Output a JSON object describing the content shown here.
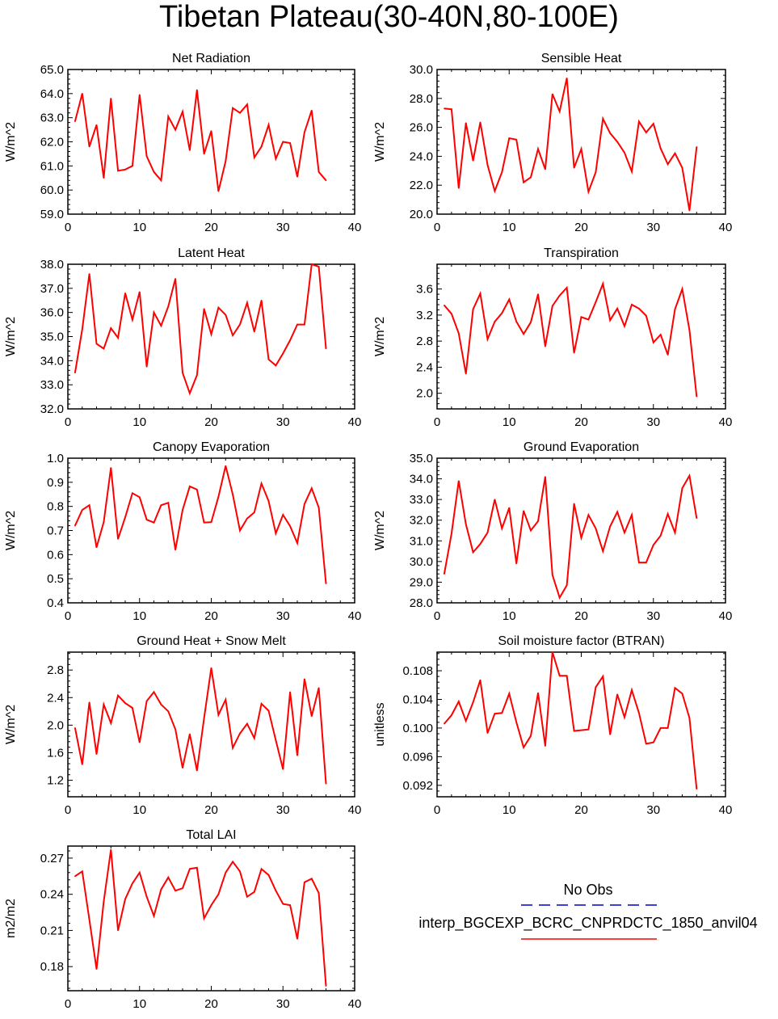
{
  "title": "Tibetan Plateau(30-40N,80-100E)",
  "colors": {
    "model_line": "#ff0000",
    "obs_line": "#0000cc",
    "axis": "#000000"
  },
  "legend": {
    "obs_label": "No Obs",
    "model_label": "interp_BGCEXP_BCRC_CNPRDCTC_1850_anvil04",
    "obs_style": "dashed",
    "model_style": "solid"
  },
  "chart_data": [
    {
      "type": "line",
      "title": "Net Radiation",
      "ylabel": "W/m^2",
      "xlabel": "",
      "xlim": [
        0,
        40
      ],
      "ylim": [
        59,
        65
      ],
      "xticks": [
        0,
        10,
        20,
        30,
        40
      ],
      "xtick_labels": [
        "0",
        "10",
        "20",
        "30",
        "40"
      ],
      "yticks": [
        59,
        60,
        61,
        62,
        63,
        64,
        65
      ],
      "ytick_labels": [
        "59.0",
        "60.0",
        "61.0",
        "62.0",
        "63.0",
        "64.0",
        "65.0"
      ],
      "x": [
        1,
        2,
        3,
        4,
        5,
        6,
        7,
        8,
        9,
        10,
        11,
        12,
        13,
        14,
        15,
        16,
        17,
        18,
        19,
        20,
        21,
        22,
        23,
        24,
        25,
        26,
        27,
        28,
        29,
        30,
        31,
        32,
        33,
        34,
        35,
        36
      ],
      "series": [
        {
          "name": "interp_BGCEXP_BCRC_CNPRDCTC_1850_anvil04",
          "values": [
            62.85,
            64.0,
            61.8,
            62.7,
            60.5,
            63.8,
            60.8,
            60.85,
            61.0,
            63.95,
            61.4,
            60.75,
            60.4,
            63.05,
            62.5,
            63.25,
            61.65,
            64.15,
            61.5,
            62.45,
            59.95,
            61.2,
            63.4,
            63.2,
            63.55,
            61.35,
            61.8,
            62.7,
            61.3,
            62.0,
            61.95,
            60.55,
            62.4,
            63.3,
            60.75,
            60.4
          ]
        }
      ]
    },
    {
      "type": "line",
      "title": "Sensible Heat",
      "ylabel": "W/m^2",
      "xlabel": "",
      "xlim": [
        0,
        40
      ],
      "ylim": [
        20,
        30
      ],
      "xticks": [
        0,
        10,
        20,
        30,
        40
      ],
      "xtick_labels": [
        "0",
        "10",
        "20",
        "30",
        "40"
      ],
      "yticks": [
        20,
        22,
        24,
        26,
        28,
        30
      ],
      "ytick_labels": [
        "20.0",
        "22.0",
        "24.0",
        "26.0",
        "28.0",
        "30.0"
      ],
      "x": [
        1,
        2,
        3,
        4,
        5,
        6,
        7,
        8,
        9,
        10,
        11,
        12,
        13,
        14,
        15,
        16,
        17,
        18,
        19,
        20,
        21,
        22,
        23,
        24,
        25,
        26,
        27,
        28,
        29,
        30,
        31,
        32,
        33,
        34,
        35,
        36
      ],
      "series": [
        {
          "name": "interp_BGCEXP_BCRC_CNPRDCTC_1850_anvil04",
          "values": [
            27.3,
            27.25,
            21.8,
            26.3,
            23.7,
            26.35,
            23.4,
            21.6,
            22.9,
            25.25,
            25.15,
            22.2,
            22.55,
            24.5,
            23.1,
            28.3,
            27.1,
            29.4,
            23.2,
            24.5,
            21.55,
            22.9,
            26.6,
            25.6,
            25.0,
            24.25,
            22.95,
            26.4,
            25.65,
            26.25,
            24.55,
            23.45,
            24.2,
            23.2,
            20.25,
            24.65
          ]
        }
      ]
    },
    {
      "type": "line",
      "title": "Latent Heat",
      "ylabel": "W/m^2",
      "xlabel": "",
      "xlim": [
        0,
        40
      ],
      "ylim": [
        32,
        38
      ],
      "xticks": [
        0,
        10,
        20,
        30,
        40
      ],
      "xtick_labels": [
        "0",
        "10",
        "20",
        "30",
        "40"
      ],
      "yticks": [
        32,
        33,
        34,
        35,
        36,
        37,
        38
      ],
      "ytick_labels": [
        "32.0",
        "33.0",
        "34.0",
        "35.0",
        "36.0",
        "37.0",
        "38.0"
      ],
      "x": [
        1,
        2,
        3,
        4,
        5,
        6,
        7,
        8,
        9,
        10,
        11,
        12,
        13,
        14,
        15,
        16,
        17,
        18,
        19,
        20,
        21,
        22,
        23,
        24,
        25,
        26,
        27,
        28,
        29,
        30,
        31,
        32,
        33,
        34,
        35,
        36
      ],
      "series": [
        {
          "name": "interp_BGCEXP_BCRC_CNPRDCTC_1850_anvil04",
          "values": [
            33.5,
            35.3,
            37.6,
            34.7,
            34.5,
            35.35,
            34.95,
            36.8,
            35.7,
            36.85,
            33.75,
            36.0,
            35.45,
            36.25,
            37.4,
            33.5,
            32.65,
            33.4,
            36.15,
            35.1,
            36.2,
            35.9,
            35.05,
            35.5,
            36.4,
            35.2,
            36.5,
            34.05,
            33.8,
            34.3,
            34.85,
            35.5,
            35.5,
            38.0,
            37.9,
            34.5
          ]
        }
      ]
    },
    {
      "type": "line",
      "title": "Transpiration",
      "ylabel": "W/m^2",
      "xlabel": "",
      "xlim": [
        0,
        40
      ],
      "ylim": [
        1.76,
        3.98
      ],
      "xticks": [
        0,
        10,
        20,
        30,
        40
      ],
      "xtick_labels": [
        "0",
        "10",
        "20",
        "30",
        "40"
      ],
      "yticks": [
        2.0,
        2.4,
        2.8,
        3.2,
        3.6
      ],
      "ytick_labels": [
        "2.0",
        "2.4",
        "2.8",
        "3.2",
        "3.6"
      ],
      "x": [
        1,
        2,
        3,
        4,
        5,
        6,
        7,
        8,
        9,
        10,
        11,
        12,
        13,
        14,
        15,
        16,
        17,
        18,
        19,
        20,
        21,
        22,
        23,
        24,
        25,
        26,
        27,
        28,
        29,
        30,
        31,
        32,
        33,
        34,
        35,
        36
      ],
      "series": [
        {
          "name": "interp_BGCEXP_BCRC_CNPRDCTC_1850_anvil04",
          "values": [
            3.35,
            3.22,
            2.92,
            2.3,
            3.29,
            3.53,
            2.83,
            3.1,
            3.23,
            3.44,
            3.1,
            2.91,
            3.09,
            3.52,
            2.72,
            3.34,
            3.5,
            3.62,
            2.62,
            3.17,
            3.13,
            3.4,
            3.68,
            3.12,
            3.3,
            3.03,
            3.36,
            3.3,
            3.19,
            2.78,
            2.9,
            2.59,
            3.29,
            3.6,
            2.97,
            1.95
          ]
        }
      ]
    },
    {
      "type": "line",
      "title": "Canopy Evaporation",
      "ylabel": "W/m^2",
      "xlabel": "",
      "xlim": [
        0,
        40
      ],
      "ylim": [
        0.4,
        1.0
      ],
      "xticks": [
        0,
        10,
        20,
        30,
        40
      ],
      "xtick_labels": [
        "0",
        "10",
        "20",
        "30",
        "40"
      ],
      "yticks": [
        0.4,
        0.5,
        0.6,
        0.7,
        0.8,
        0.9,
        1.0
      ],
      "ytick_labels": [
        "0.4",
        "0.5",
        "0.6",
        "0.7",
        "0.8",
        "0.9",
        "1.0"
      ],
      "x": [
        1,
        2,
        3,
        4,
        5,
        6,
        7,
        8,
        9,
        10,
        11,
        12,
        13,
        14,
        15,
        16,
        17,
        18,
        19,
        20,
        21,
        22,
        23,
        24,
        25,
        26,
        27,
        28,
        29,
        30,
        31,
        32,
        33,
        34,
        35,
        36
      ],
      "series": [
        {
          "name": "interp_BGCEXP_BCRC_CNPRDCTC_1850_anvil04",
          "values": [
            0.72,
            0.785,
            0.805,
            0.63,
            0.735,
            0.96,
            0.665,
            0.755,
            0.855,
            0.838,
            0.745,
            0.733,
            0.805,
            0.815,
            0.62,
            0.785,
            0.883,
            0.87,
            0.733,
            0.735,
            0.84,
            0.968,
            0.85,
            0.7,
            0.75,
            0.775,
            0.895,
            0.822,
            0.688,
            0.765,
            0.718,
            0.648,
            0.81,
            0.875,
            0.795,
            0.48
          ]
        }
      ]
    },
    {
      "type": "line",
      "title": "Ground Evaporation",
      "ylabel": "W/m^2",
      "xlabel": "",
      "xlim": [
        0,
        40
      ],
      "ylim": [
        28,
        35
      ],
      "xticks": [
        0,
        10,
        20,
        30,
        40
      ],
      "xtick_labels": [
        "0",
        "10",
        "20",
        "30",
        "40"
      ],
      "yticks": [
        28,
        29,
        30,
        31,
        32,
        33,
        34,
        35
      ],
      "ytick_labels": [
        "28.0",
        "29.0",
        "30.0",
        "31.0",
        "32.0",
        "33.0",
        "34.0",
        "35.0"
      ],
      "x": [
        1,
        2,
        3,
        4,
        5,
        6,
        7,
        8,
        9,
        10,
        11,
        12,
        13,
        14,
        15,
        16,
        17,
        18,
        19,
        20,
        21,
        22,
        23,
        24,
        25,
        26,
        27,
        28,
        29,
        30,
        31,
        32,
        33,
        34,
        35,
        36
      ],
      "series": [
        {
          "name": "interp_BGCEXP_BCRC_CNPRDCTC_1850_anvil04",
          "values": [
            29.4,
            31.35,
            33.9,
            31.8,
            30.45,
            30.85,
            31.4,
            33.0,
            31.6,
            32.6,
            29.9,
            32.45,
            31.5,
            31.95,
            34.1,
            29.35,
            28.25,
            28.85,
            32.8,
            31.15,
            32.25,
            31.6,
            30.5,
            31.7,
            32.4,
            31.4,
            32.25,
            29.95,
            29.95,
            30.8,
            31.25,
            32.3,
            31.4,
            33.55,
            34.15,
            32.1
          ]
        }
      ]
    },
    {
      "type": "line",
      "title": "Ground Heat + Snow Melt",
      "ylabel": "W/m^2",
      "xlabel": "",
      "xlim": [
        0,
        40
      ],
      "ylim": [
        0.96,
        3.06
      ],
      "xticks": [
        0,
        10,
        20,
        30,
        40
      ],
      "xtick_labels": [
        "0",
        "10",
        "20",
        "30",
        "40"
      ],
      "yticks": [
        1.2,
        1.6,
        2.0,
        2.4,
        2.8
      ],
      "ytick_labels": [
        "1.2",
        "1.6",
        "2.0",
        "2.4",
        "2.8"
      ],
      "x": [
        1,
        2,
        3,
        4,
        5,
        6,
        7,
        8,
        9,
        10,
        11,
        12,
        13,
        14,
        15,
        16,
        17,
        18,
        19,
        20,
        21,
        22,
        23,
        24,
        25,
        26,
        27,
        28,
        29,
        30,
        31,
        32,
        33,
        34,
        35,
        36
      ],
      "series": [
        {
          "name": "interp_BGCEXP_BCRC_CNPRDCTC_1850_anvil04",
          "values": [
            1.96,
            1.43,
            2.33,
            1.58,
            2.3,
            2.03,
            2.43,
            2.32,
            2.25,
            1.75,
            2.35,
            2.48,
            2.3,
            2.2,
            1.94,
            1.38,
            1.87,
            1.34,
            2.1,
            2.83,
            2.15,
            2.37,
            1.67,
            1.88,
            2.02,
            1.81,
            2.31,
            2.21,
            1.78,
            1.36,
            2.48,
            1.56,
            2.67,
            2.13,
            2.54,
            1.15
          ]
        }
      ]
    },
    {
      "type": "line",
      "title": "Soil moisture factor (BTRAN)",
      "ylabel": "unitless",
      "xlabel": "",
      "xlim": [
        0,
        40
      ],
      "ylim": [
        0.0904,
        0.1106
      ],
      "xticks": [
        0,
        10,
        20,
        30,
        40
      ],
      "xtick_labels": [
        "0",
        "10",
        "20",
        "30",
        "40"
      ],
      "yticks": [
        0.092,
        0.096,
        0.1,
        0.104,
        0.108
      ],
      "ytick_labels": [
        "0.092",
        "0.096",
        "0.100",
        "0.104",
        "0.108"
      ],
      "x": [
        1,
        2,
        3,
        4,
        5,
        6,
        7,
        8,
        9,
        10,
        11,
        12,
        13,
        14,
        15,
        16,
        17,
        18,
        19,
        20,
        21,
        22,
        23,
        24,
        25,
        26,
        27,
        28,
        29,
        30,
        31,
        32,
        33,
        34,
        35,
        36
      ],
      "series": [
        {
          "name": "interp_BGCEXP_BCRC_CNPRDCTC_1850_anvil04",
          "values": [
            0.1006,
            0.1018,
            0.1037,
            0.101,
            0.1036,
            0.1067,
            0.0993,
            0.102,
            0.1021,
            0.1048,
            0.1008,
            0.0973,
            0.0989,
            0.1049,
            0.0975,
            0.1106,
            0.1073,
            0.1073,
            0.0996,
            0.0997,
            0.0998,
            0.1057,
            0.1072,
            0.0991,
            0.1047,
            0.1015,
            0.1053,
            0.1021,
            0.0978,
            0.098,
            0.1,
            0.1,
            0.1056,
            0.1048,
            0.1014,
            0.0915
          ]
        }
      ]
    },
    {
      "type": "line",
      "title": "Total LAI",
      "ylabel": "m2/m2",
      "xlabel": "",
      "xlim": [
        0,
        40
      ],
      "ylim": [
        0.16,
        0.28
      ],
      "xticks": [
        0,
        10,
        20,
        30,
        40
      ],
      "xtick_labels": [
        "0",
        "10",
        "20",
        "30",
        "40"
      ],
      "yticks": [
        0.18,
        0.21,
        0.24,
        0.27
      ],
      "ytick_labels": [
        "0.18",
        "0.21",
        "0.24",
        "0.27"
      ],
      "x": [
        1,
        2,
        3,
        4,
        5,
        6,
        7,
        8,
        9,
        10,
        11,
        12,
        13,
        14,
        15,
        16,
        17,
        18,
        19,
        20,
        21,
        22,
        23,
        24,
        25,
        26,
        27,
        28,
        29,
        30,
        31,
        32,
        33,
        34,
        35,
        36
      ],
      "series": [
        {
          "name": "interp_BGCEXP_BCRC_CNPRDCTC_1850_anvil04",
          "values": [
            0.255,
            0.259,
            0.219,
            0.178,
            0.234,
            0.277,
            0.21,
            0.236,
            0.249,
            0.258,
            0.238,
            0.222,
            0.244,
            0.254,
            0.243,
            0.245,
            0.261,
            0.262,
            0.22,
            0.231,
            0.24,
            0.258,
            0.267,
            0.259,
            0.238,
            0.242,
            0.261,
            0.256,
            0.243,
            0.232,
            0.231,
            0.203,
            0.25,
            0.253,
            0.241,
            0.164
          ]
        }
      ]
    }
  ]
}
